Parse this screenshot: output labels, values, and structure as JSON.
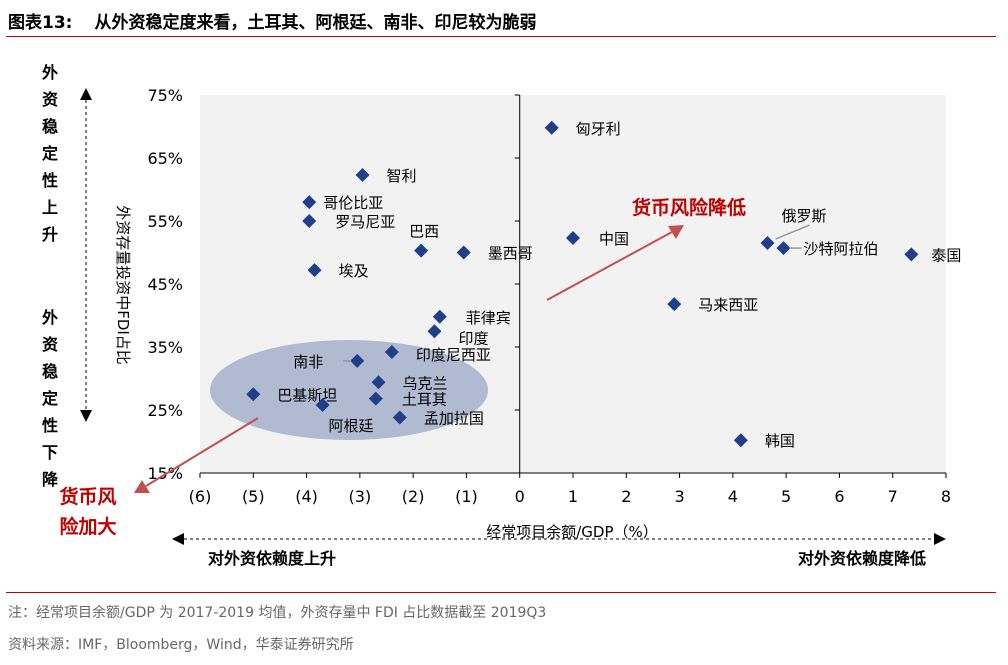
{
  "header": {
    "figure_number": "图表13:",
    "title": "从外资稳定度来看，土耳其、阿根廷、南非、印尼较为脆弱"
  },
  "footer": {
    "note": "注：经常项目余额/GDP 为 2017-2019 均值，外资存量中 FDI 占比数据截至 2019Q3",
    "source": "资料来源：IMF，Bloomberg，Wind，华泰证券研究所"
  },
  "annotations": {
    "stability_up": "外资稳定性上升",
    "stability_down": "外资稳定性下降",
    "risk_down": "货币风险降低",
    "risk_up": "货币风险加大",
    "dependence_up": "对外资依赖度上升",
    "dependence_down": "对外资依赖度降低"
  },
  "colors": {
    "marker": "#1f3f8a",
    "accent_red": "#c00000",
    "plot_bg": "#f2f2f2",
    "ellipse": "#8496bd"
  },
  "chart_data": {
    "type": "scatter",
    "xlabel": "经常项目余额/GDP（%）",
    "ylabel": "外资存量投资中FDI占比",
    "xlim": [
      -6,
      8
    ],
    "ylim": [
      15,
      75
    ],
    "x_ticks": [
      -6,
      -5,
      -4,
      -3,
      -2,
      -1,
      0,
      1,
      2,
      3,
      4,
      5,
      6,
      7,
      8
    ],
    "x_tick_labels": [
      "(6)",
      "(5)",
      "(4)",
      "(3)",
      "(2)",
      "(1)",
      "0",
      "1",
      "2",
      "3",
      "4",
      "5",
      "6",
      "7",
      "8"
    ],
    "y_ticks": [
      15,
      25,
      35,
      45,
      55,
      65,
      75
    ],
    "y_tick_labels": [
      "15%",
      "25%",
      "35%",
      "45%",
      "55%",
      "65%",
      "75%"
    ],
    "grid": false,
    "points": [
      {
        "label": "匈牙利",
        "x": 0.6,
        "y": 69.8
      },
      {
        "label": "智利",
        "x": -2.95,
        "y": 62.3
      },
      {
        "label": "哥伦比亚",
        "x": -3.95,
        "y": 58.0
      },
      {
        "label": "罗马尼亚",
        "x": -3.95,
        "y": 55.0
      },
      {
        "label": "巴西",
        "x": -1.85,
        "y": 50.3
      },
      {
        "label": "墨西哥",
        "x": -1.05,
        "y": 50.0
      },
      {
        "label": "中国",
        "x": 1.0,
        "y": 52.3
      },
      {
        "label": "俄罗斯",
        "x": 4.65,
        "y": 51.5
      },
      {
        "label": "沙特阿拉伯",
        "x": 4.95,
        "y": 50.7
      },
      {
        "label": "泰国",
        "x": 7.35,
        "y": 49.7
      },
      {
        "label": "埃及",
        "x": -3.85,
        "y": 47.2
      },
      {
        "label": "马来西亚",
        "x": 2.9,
        "y": 41.8
      },
      {
        "label": "菲律宾",
        "x": -1.5,
        "y": 39.8
      },
      {
        "label": "印度",
        "x": -1.6,
        "y": 37.5
      },
      {
        "label": "印度尼西亚",
        "x": -2.4,
        "y": 34.2
      },
      {
        "label": "南非",
        "x": -3.05,
        "y": 32.8
      },
      {
        "label": "乌克兰",
        "x": -2.65,
        "y": 29.4
      },
      {
        "label": "巴基斯坦",
        "x": -5.0,
        "y": 27.5
      },
      {
        "label": "土耳其",
        "x": -2.7,
        "y": 26.8
      },
      {
        "label": "阿根廷",
        "x": -3.7,
        "y": 25.8
      },
      {
        "label": "孟加拉国",
        "x": -2.25,
        "y": 23.8
      },
      {
        "label": "韩国",
        "x": 4.15,
        "y": 20.2
      }
    ]
  }
}
